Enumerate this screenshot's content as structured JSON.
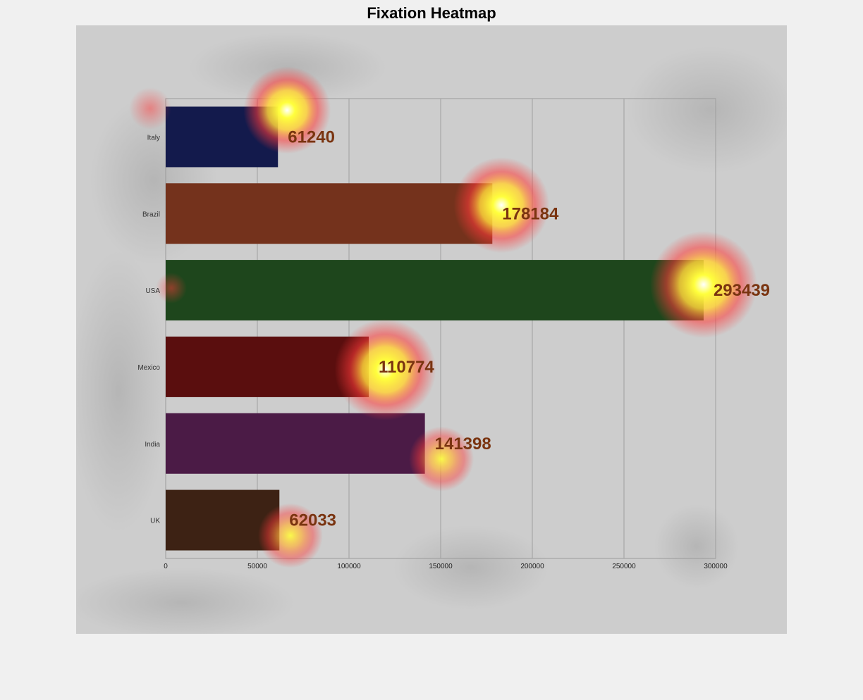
{
  "window": {
    "title": "Fixation Heatmap"
  },
  "chart_data": {
    "type": "bar",
    "orientation": "horizontal",
    "title": "",
    "xlabel": "",
    "ylabel": "",
    "categories": [
      "Italy",
      "Brazil",
      "USA",
      "Mexico",
      "India",
      "UK"
    ],
    "values": [
      61240,
      178184,
      293439,
      110774,
      141398,
      62033
    ],
    "bar_colors": [
      "#131a4c",
      "#74321c",
      "#1e461c",
      "#5a0e0e",
      "#4b1b46",
      "#3d2214"
    ],
    "xlim": [
      0,
      300000
    ],
    "xticks": [
      0,
      50000,
      100000,
      150000,
      200000,
      250000,
      300000
    ],
    "xtick_labels": [
      "0",
      "50000",
      "100000",
      "150000",
      "200000",
      "250000",
      "300000"
    ],
    "grid": "vertical",
    "data_labels": true
  },
  "heatmap_overlay": {
    "hotspot_color": "#ffff3c",
    "halo_color": "#ff3a3a"
  }
}
